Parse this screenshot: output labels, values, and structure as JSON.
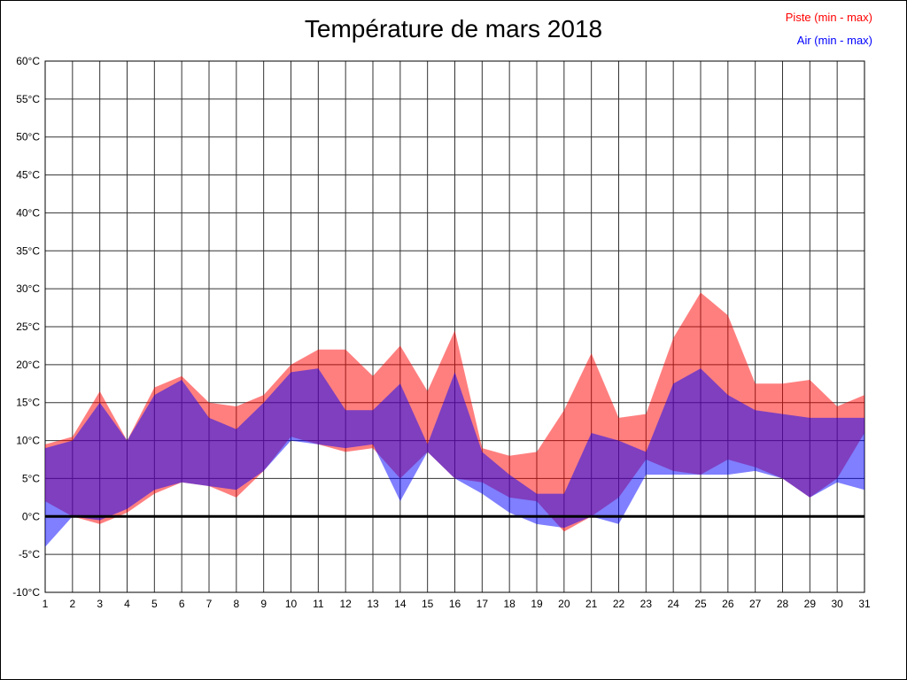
{
  "header": {
    "title": "Température de mars 2018",
    "legend": [
      {
        "label": "Piste (min - max)",
        "color": "#ff0000"
      },
      {
        "label": "Air (min - max)",
        "color": "#0000ff"
      }
    ]
  },
  "chart_data": {
    "type": "area",
    "subtype": "min-max-range-bands",
    "title": "Température de mars 2018",
    "xlabel": "",
    "ylabel": "",
    "ylim": [
      -10,
      60
    ],
    "ytick_step": 5,
    "grid": true,
    "grid_color": "#333333",
    "legend_position": "top-right",
    "zero_line": true,
    "x": [
      1,
      2,
      3,
      4,
      5,
      6,
      7,
      8,
      9,
      10,
      11,
      12,
      13,
      14,
      15,
      16,
      17,
      18,
      19,
      20,
      21,
      22,
      23,
      24,
      25,
      26,
      27,
      28,
      29,
      30,
      31
    ],
    "xtick_labels": [
      "1",
      "2",
      "3",
      "4",
      "5",
      "6",
      "7",
      "8",
      "9",
      "10",
      "11",
      "12",
      "13",
      "14",
      "15",
      "16",
      "17",
      "18",
      "19",
      "20",
      "21",
      "22",
      "23",
      "24",
      "25",
      "26",
      "27",
      "28",
      "29",
      "30",
      "31"
    ],
    "ytick_labels": [
      "60°C",
      "55°C",
      "50°C",
      "45°C",
      "40°C",
      "35°C",
      "30°C",
      "25°C",
      "20°C",
      "15°C",
      "10°C",
      "5°C",
      "0°C",
      "-5°C",
      "-10°C"
    ],
    "series": [
      {
        "id": "piste",
        "name": "Piste (min - max)",
        "color": "#ff0000",
        "opacity": 0.5,
        "min": [
          2,
          0,
          -1,
          0.5,
          3,
          4.5,
          4,
          2.5,
          6,
          10.5,
          9.5,
          8.5,
          9,
          5,
          8.5,
          5,
          4.5,
          2.5,
          2,
          -2,
          0,
          2.5,
          7.5,
          6,
          5.5,
          7.5,
          6.5,
          5,
          2.5,
          5,
          11
        ],
        "max": [
          9.5,
          10.5,
          16.5,
          10,
          17,
          18.5,
          15,
          14.5,
          16,
          20,
          22,
          22,
          18.5,
          22.5,
          16.5,
          24.5,
          9,
          8,
          8.5,
          14,
          21.5,
          13,
          13.5,
          23.5,
          29.5,
          26.5,
          17.5,
          17.5,
          18,
          14.5,
          16
        ]
      },
      {
        "id": "air",
        "name": "Air (min - max)",
        "color": "#0000ff",
        "opacity": 0.5,
        "min": [
          -4,
          0,
          -0.5,
          1,
          3.5,
          4.5,
          4,
          3.5,
          6,
          10,
          9.5,
          9,
          9.5,
          2,
          8.5,
          5,
          3,
          0.5,
          -1,
          -1.5,
          0,
          -1,
          5.5,
          5.5,
          5.5,
          5.5,
          6,
          5,
          2.5,
          4.5,
          3.5
        ],
        "max": [
          9,
          10,
          15,
          10,
          16,
          18,
          13,
          11.5,
          15,
          19,
          19.5,
          14,
          14,
          17.5,
          9.5,
          19,
          8.5,
          5.5,
          3,
          3,
          11,
          10,
          8.5,
          17.5,
          19.5,
          16,
          14,
          13.5,
          13,
          13,
          13
        ]
      }
    ]
  }
}
